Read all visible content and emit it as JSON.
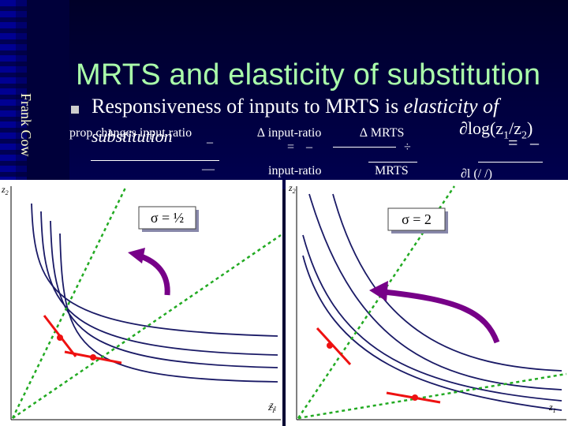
{
  "slide": {
    "title": "MRTS and elasticity of substitution",
    "author_vertical": "Frank Cow",
    "bullet": {
      "text_prefix": "Responsiveness of inputs to MRTS is ",
      "text_italic": "elasticity of",
      "text_italic_2": "substitution"
    },
    "formula": {
      "prop_changes": "prop changes input ratio",
      "equals_1": "=",
      "minus_1": "–",
      "delta_input_ratio": "∆ input-ratio",
      "delta_mrts": "∆ MRTS",
      "divide": "÷",
      "input_ratio": "input-ratio",
      "mrts": "MRTS",
      "dlog": "∂log(z",
      "sub1": "1",
      "slash": "/z",
      "sub2": "2",
      "close": ")",
      "equals_2": "=",
      "minus_2": "–",
      "dash": "—",
      "partial_trunc": "∂l (/ /)"
    }
  },
  "panels": {
    "left": {
      "axis_y": "z",
      "axis_y_sub": "2",
      "axis_x": "z",
      "axis_x_sub": "1",
      "sigma_label": "σ = ½"
    },
    "right": {
      "axis_y": "z",
      "axis_y_sub": "2",
      "axis_x": "z",
      "axis_x_sub": "1",
      "sigma_label": "σ = 2"
    }
  },
  "colors": {
    "background": "#000033",
    "title": "#aaffaa",
    "isoquant": "#1a1a66",
    "ray": "#22aa22",
    "tangent": "#ee1111",
    "arrow": "#770088"
  }
}
